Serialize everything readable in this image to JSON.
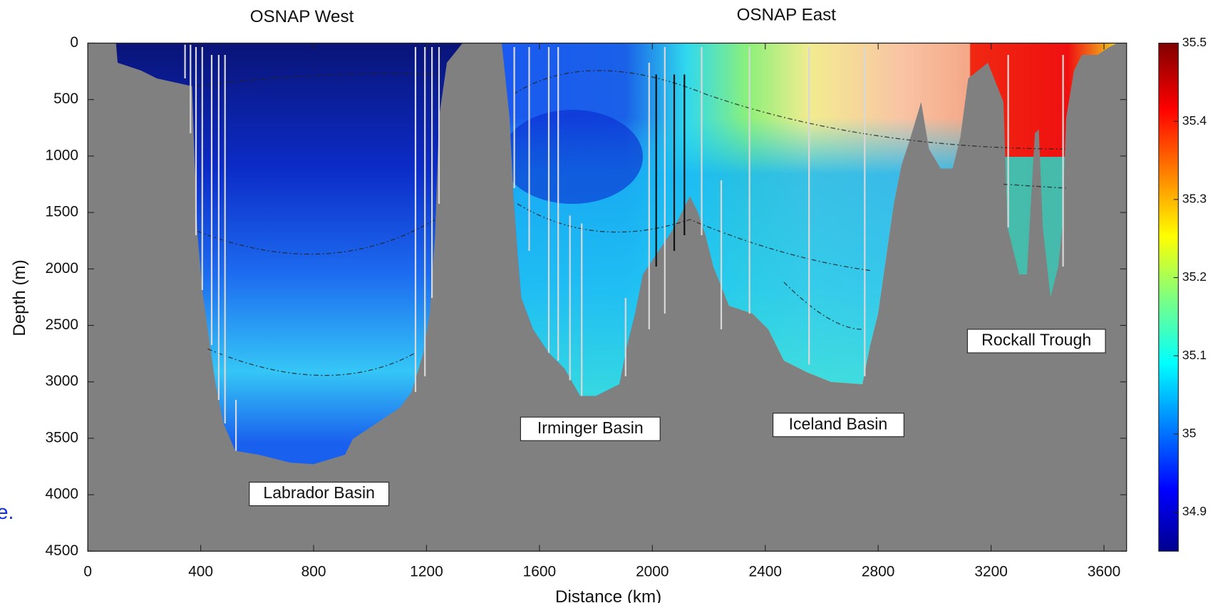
{
  "chart_data": {
    "type": "section",
    "titles": [
      "OSNAP West",
      "OSNAP East"
    ],
    "xlabel": "Distance (km)",
    "ylabel": "Depth (m)",
    "xlim": [
      0,
      3680
    ],
    "ylim": [
      0,
      4500
    ],
    "y_reversed": true,
    "xticks": [
      0,
      400,
      800,
      1200,
      1600,
      2000,
      2400,
      2800,
      3200,
      3600
    ],
    "yticks": [
      0,
      500,
      1000,
      1500,
      2000,
      2500,
      3000,
      3500,
      4000,
      4500
    ],
    "annotations": [
      "Labrador Basin",
      "Irminger Basin",
      "Iceland Basin",
      "Rockall Trough"
    ],
    "colorbar": {
      "clim": [
        34.85,
        35.5
      ],
      "ticks": [
        34.9,
        35,
        35.1,
        35.2,
        35.3,
        35.4,
        35.5
      ]
    },
    "cropped_text": "e."
  }
}
